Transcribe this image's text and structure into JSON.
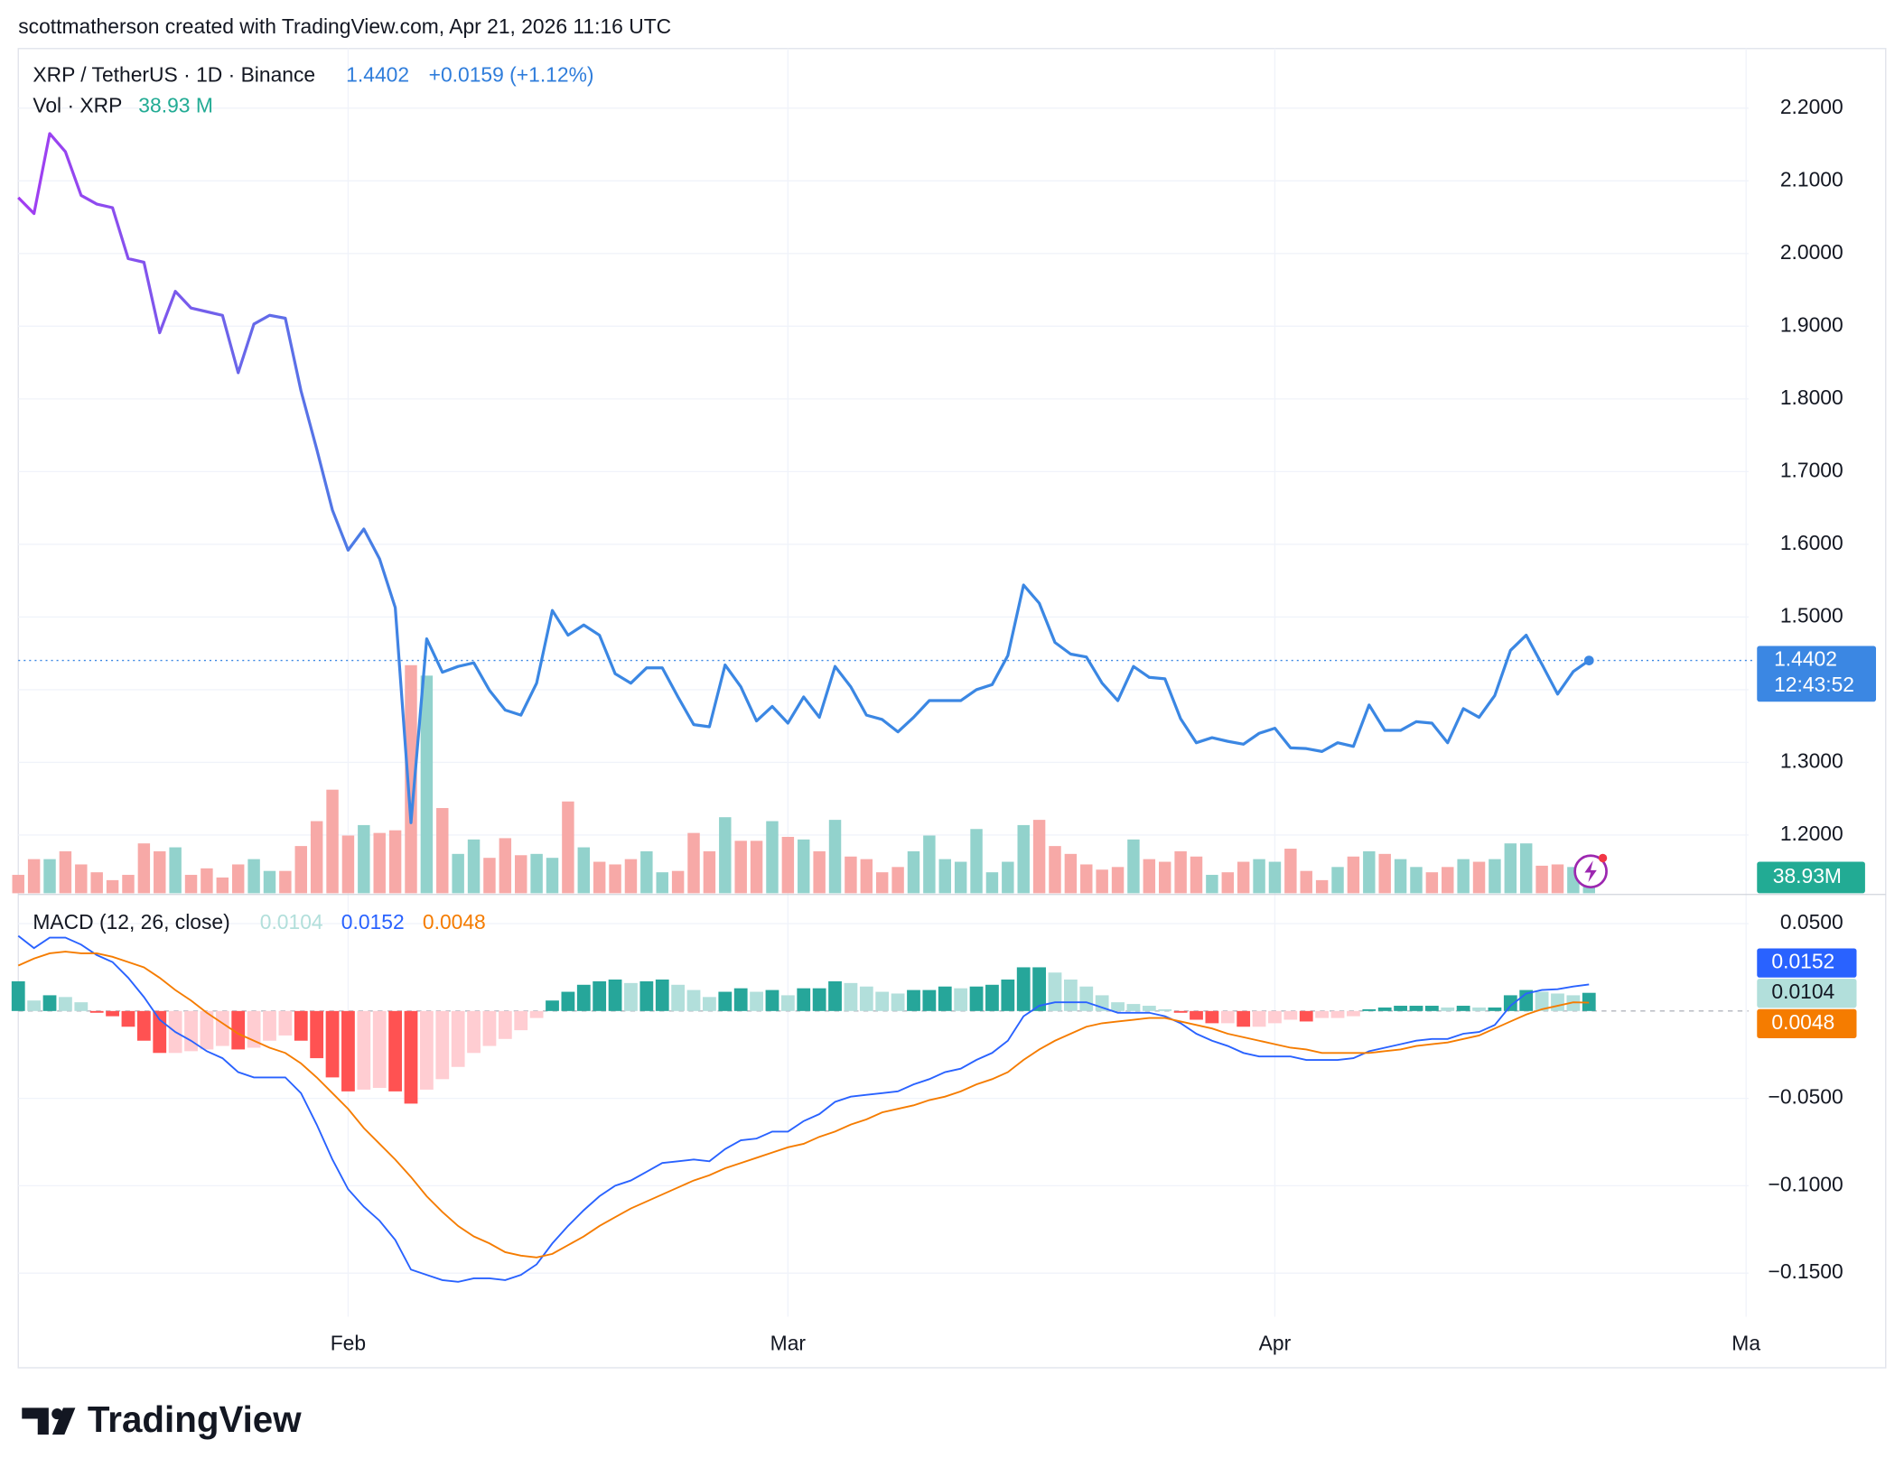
{
  "header": {
    "attribution": "scottmatherson created with TradingView.com, Apr 21, 2026 11:16 UTC"
  },
  "footer": {
    "logo": "TradingView"
  },
  "chart_data": [
    {
      "type": "line",
      "title": "XRP / TetherUS · 1D · Binance",
      "change": "+0.0159 (+1.12%)",
      "countdown": "12:43:52",
      "categories": [
        null,
        null,
        null,
        null,
        null,
        null,
        null,
        null,
        null,
        null,
        null,
        null,
        null,
        null,
        null,
        null,
        null,
        null,
        null,
        null,
        null,
        "Feb",
        null,
        null,
        null,
        null,
        null,
        null,
        null,
        null,
        null,
        null,
        null,
        null,
        null,
        null,
        null,
        null,
        null,
        null,
        null,
        null,
        null,
        null,
        null,
        null,
        null,
        null,
        null,
        "Mar",
        null,
        null,
        null,
        null,
        null,
        null,
        null,
        null,
        null,
        null,
        null,
        null,
        null,
        null,
        null,
        null,
        null,
        null,
        null,
        null,
        null,
        null,
        null,
        null,
        null,
        null,
        null,
        null,
        null,
        null,
        "Apr",
        null,
        null,
        null,
        null,
        null,
        null,
        null,
        null,
        null,
        null,
        null,
        null,
        null,
        null,
        null,
        null,
        null,
        null,
        null,
        null,
        null,
        null,
        null,
        null,
        null,
        null,
        null,
        null,
        null,
        "Ma"
      ],
      "series": [
        {
          "color": "#3b87e3",
          "start_color": "#a33cf2",
          "values": [
            2.077,
            2.055,
            2.165,
            2.14,
            2.08,
            2.068,
            2.063,
            1.993,
            1.988,
            1.891,
            1.948,
            1.925,
            1.92,
            1.915,
            1.836,
            1.903,
            1.915,
            1.911,
            1.811,
            1.731,
            1.647,
            1.592,
            1.621,
            1.58,
            1.513,
            1.217,
            1.47,
            1.424,
            1.432,
            1.437,
            1.399,
            1.372,
            1.365,
            1.409,
            1.509,
            1.475,
            1.489,
            1.475,
            1.422,
            1.409,
            1.43,
            1.43,
            1.39,
            1.352,
            1.349,
            1.434,
            1.404,
            1.357,
            1.377,
            1.354,
            1.39,
            1.362,
            1.432,
            1.404,
            1.365,
            1.359,
            1.342,
            1.362,
            1.385,
            1.385,
            1.385,
            1.4,
            1.407,
            1.447,
            1.544,
            1.519,
            1.465,
            1.449,
            1.445,
            1.409,
            1.385,
            1.432,
            1.417,
            1.415,
            1.36,
            1.327,
            1.334,
            1.329,
            1.325,
            1.34,
            1.347,
            1.32,
            1.319,
            1.315,
            1.327,
            1.322,
            1.379,
            1.344,
            1.344,
            1.356,
            1.354,
            1.327,
            1.374,
            1.362,
            1.392,
            1.454,
            1.475,
            1.435,
            1.394,
            1.425,
            1.4402,
            null,
            null,
            null,
            null,
            null,
            null,
            null,
            null,
            null,
            null
          ]
        }
      ],
      "ylim": [
        1.12,
        2.282
      ],
      "yticks": [
        {
          "value": 1.2,
          "label": "1.2000"
        },
        {
          "value": 1.3,
          "label": "1.3000"
        },
        {
          "value": 1.4,
          "label": "1.4000"
        },
        {
          "value": 1.5,
          "label": "1.5000"
        },
        {
          "value": 1.6,
          "label": "1.6000"
        },
        {
          "value": 1.7,
          "label": "1.7000"
        },
        {
          "value": 1.8,
          "label": "1.8000"
        },
        {
          "value": 1.9,
          "label": "1.9000"
        },
        {
          "value": 2.0,
          "label": "2.0000"
        },
        {
          "value": 2.1,
          "label": "2.1000"
        },
        {
          "value": 2.2,
          "label": "2.2000"
        }
      ],
      "grid": true
    },
    {
      "type": "bar",
      "title": "Vol · XRP",
      "last_label": "38.93 M",
      "badge_label": "38.93M",
      "colors": [
        "#92d2cc",
        "#f7a9a7"
      ],
      "values": [
        34.1,
        63.3,
        63.3,
        77.9,
        53.5,
        38.9,
        24.3,
        34.1,
        92.5,
        77.9,
        85.2,
        34.1,
        46.2,
        29.2,
        53.5,
        63.3,
        41.4,
        41.4,
        87.6,
        133.8,
        192.2,
        107.1,
        126.5,
        111.9,
        116.8,
        423.3,
        403.9,
        158.1,
        73.0,
        99.8,
        65.7,
        102.2,
        70.6,
        73.0,
        65.7,
        170.3,
        85.2,
        58.4,
        53.5,
        63.3,
        77.9,
        38.9,
        41.4,
        111.9,
        77.9,
        141.1,
        97.3,
        97.3,
        133.8,
        104.6,
        99.8,
        77.9,
        136.2,
        68.1,
        63.3,
        38.9,
        48.7,
        77.9,
        107.1,
        63.3,
        58.4,
        119.2,
        38.9,
        58.4,
        126.5,
        136.2,
        87.6,
        73.0,
        53.5,
        43.8,
        48.7,
        99.8,
        63.3,
        58.4,
        77.9,
        68.1,
        34.1,
        38.9,
        58.4,
        63.3,
        58.4,
        82.7,
        41.4,
        24.3,
        48.7,
        68.1,
        77.9,
        73.0,
        63.3,
        48.7,
        38.9,
        48.7,
        63.3,
        58.4,
        63.3,
        92.5,
        92.5,
        51.1,
        53.5,
        48.7,
        38.93,
        null,
        null,
        null,
        null,
        null,
        null,
        null,
        null,
        null,
        null
      ]
    },
    {
      "type": "macd",
      "title": "MACD (12, 26, close)",
      "series": [
        {
          "kind": "histogram",
          "colors": [
            "#26a69a",
            "#b2dfdb",
            "#ffcdd2",
            "#ff5252"
          ],
          "color": "#b2dfdb",
          "values": [
            0.017,
            0.006,
            0.009,
            0.008,
            0.005,
            -0.001,
            -0.003,
            -0.009,
            -0.017,
            -0.024,
            -0.024,
            -0.023,
            -0.022,
            -0.02,
            -0.022,
            -0.021,
            -0.017,
            -0.014,
            -0.017,
            -0.027,
            -0.038,
            -0.046,
            -0.045,
            -0.044,
            -0.046,
            -0.053,
            -0.045,
            -0.039,
            -0.032,
            -0.024,
            -0.02,
            -0.016,
            -0.011,
            -0.004,
            0.006,
            0.011,
            0.015,
            0.017,
            0.018,
            0.016,
            0.017,
            0.018,
            0.015,
            0.012,
            0.008,
            0.011,
            0.013,
            0.011,
            0.012,
            0.009,
            0.013,
            0.013,
            0.017,
            0.016,
            0.014,
            0.011,
            0.01,
            0.012,
            0.012,
            0.014,
            0.013,
            0.014,
            0.015,
            0.018,
            0.025,
            0.025,
            0.022,
            0.018,
            0.014,
            0.009,
            0.005,
            0.004,
            0.003,
            0.001,
            -0.001,
            -0.005,
            -0.007,
            -0.007,
            -0.009,
            -0.009,
            -0.007,
            -0.005,
            -0.006,
            -0.004,
            -0.004,
            -0.003,
            0.001,
            0.002,
            0.003,
            0.003,
            0.003,
            0.002,
            0.003,
            0.002,
            0.002,
            0.009,
            0.012,
            0.011,
            0.01,
            0.009,
            0.0104,
            null,
            null,
            null,
            null,
            null,
            null,
            null,
            null,
            null,
            null
          ]
        },
        {
          "kind": "line",
          "color": "#2962ff",
          "values": [
            0.043,
            0.036,
            0.042,
            0.042,
            0.038,
            0.032,
            0.028,
            0.019,
            0.008,
            -0.005,
            -0.012,
            -0.017,
            -0.023,
            -0.027,
            -0.035,
            -0.038,
            -0.038,
            -0.038,
            -0.047,
            -0.065,
            -0.085,
            -0.102,
            -0.112,
            -0.12,
            -0.131,
            -0.148,
            -0.151,
            -0.154,
            -0.155,
            -0.153,
            -0.153,
            -0.154,
            -0.151,
            -0.145,
            -0.133,
            -0.123,
            -0.114,
            -0.106,
            -0.1,
            -0.097,
            -0.092,
            -0.087,
            -0.086,
            -0.085,
            -0.086,
            -0.079,
            -0.074,
            -0.073,
            -0.069,
            -0.069,
            -0.063,
            -0.059,
            -0.052,
            -0.049,
            -0.048,
            -0.047,
            -0.046,
            -0.042,
            -0.039,
            -0.035,
            -0.033,
            -0.028,
            -0.024,
            -0.017,
            -0.003,
            0.003,
            0.005,
            0.005,
            0.005,
            0.002,
            -0.001,
            -0.001,
            -0.001,
            -0.003,
            -0.007,
            -0.013,
            -0.017,
            -0.02,
            -0.024,
            -0.026,
            -0.026,
            -0.026,
            -0.028,
            -0.028,
            -0.028,
            -0.027,
            -0.023,
            -0.021,
            -0.019,
            -0.017,
            -0.016,
            -0.016,
            -0.013,
            -0.012,
            -0.008,
            0.003,
            0.01,
            0.012,
            0.0125,
            0.014,
            0.0152,
            null,
            null,
            null,
            null,
            null,
            null,
            null,
            null,
            null,
            null
          ]
        },
        {
          "kind": "line",
          "color": "#f57c00",
          "values": [
            0.026,
            0.03,
            0.033,
            0.034,
            0.033,
            0.033,
            0.031,
            0.028,
            0.025,
            0.019,
            0.012,
            0.006,
            -0.001,
            -0.007,
            -0.013,
            -0.017,
            -0.021,
            -0.024,
            -0.03,
            -0.038,
            -0.047,
            -0.056,
            -0.067,
            -0.076,
            -0.085,
            -0.095,
            -0.106,
            -0.115,
            -0.123,
            -0.129,
            -0.133,
            -0.138,
            -0.14,
            -0.141,
            -0.139,
            -0.134,
            -0.129,
            -0.123,
            -0.118,
            -0.113,
            -0.109,
            -0.105,
            -0.101,
            -0.097,
            -0.094,
            -0.09,
            -0.087,
            -0.084,
            -0.081,
            -0.078,
            -0.076,
            -0.072,
            -0.069,
            -0.065,
            -0.062,
            -0.058,
            -0.056,
            -0.054,
            -0.051,
            -0.049,
            -0.046,
            -0.042,
            -0.039,
            -0.035,
            -0.028,
            -0.022,
            -0.017,
            -0.013,
            -0.009,
            -0.007,
            -0.006,
            -0.005,
            -0.004,
            -0.004,
            -0.006,
            -0.008,
            -0.01,
            -0.013,
            -0.015,
            -0.017,
            -0.019,
            -0.021,
            -0.022,
            -0.024,
            -0.024,
            -0.024,
            -0.024,
            -0.023,
            -0.022,
            -0.02,
            -0.019,
            -0.018,
            -0.016,
            -0.014,
            -0.01,
            -0.006,
            -0.002,
            0.001,
            0.003,
            0.005,
            0.0048,
            null,
            null,
            null,
            null,
            null,
            null,
            null,
            null,
            null,
            null
          ]
        }
      ],
      "ylim": [
        -0.175,
        0.066
      ],
      "yticks": [
        {
          "value": 0.05,
          "label": "0.0500"
        },
        {
          "value": -0.05,
          "label": "−0.0500"
        },
        {
          "value": -0.1,
          "label": "−0.1000"
        },
        {
          "value": -0.15,
          "label": "−0.1500"
        }
      ],
      "grid": true
    }
  ]
}
